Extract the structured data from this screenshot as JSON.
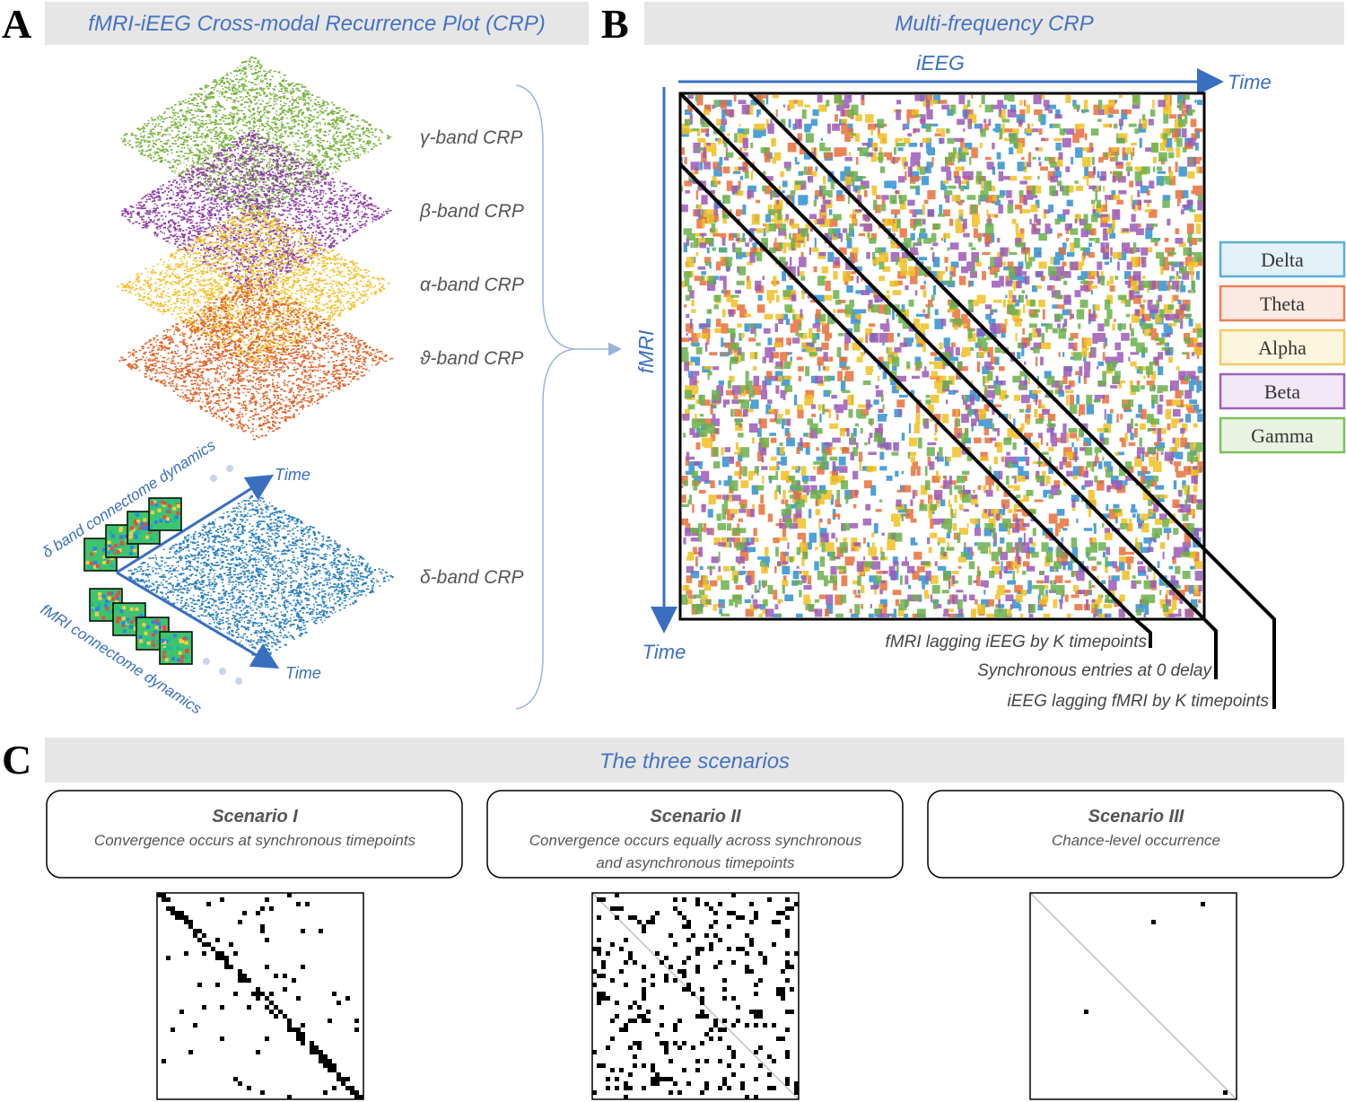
{
  "panels": {
    "A": {
      "letter": "A",
      "title": "fMRI-iEEG Cross-modal Recurrence Plot (CRP)",
      "layers": [
        "γ-band CRP",
        "β-band CRP",
        "α-band CRP",
        "ϑ-band CRP",
        "δ-band CRP"
      ],
      "time_labels": [
        "Time",
        "Time"
      ],
      "dynamics": [
        "δ band connectome dynamics",
        "fMRI connectome dynamics"
      ]
    },
    "B": {
      "letter": "B",
      "title": "Multi-frequency CRP",
      "x_axis": "iEEG",
      "x_time": "Time",
      "y_axis": "fMRI",
      "y_time": "Time",
      "legend": [
        "Delta",
        "Theta",
        "Alpha",
        "Beta",
        "Gamma"
      ],
      "annotations": [
        "fMRI lagging iEEG by K timepoints",
        "Synchronous entries at 0 delay",
        "iEEG lagging fMRI by K timepoints"
      ]
    },
    "C": {
      "letter": "C",
      "title": "The three scenarios",
      "scenarios": [
        {
          "name": "Scenario I",
          "description": [
            "Convergence occurs at synchronous timepoints"
          ]
        },
        {
          "name": "Scenario II",
          "description": [
            "Convergence occurs equally across synchronous",
            "and asynchronous timepoints"
          ]
        },
        {
          "name": "Scenario III",
          "description": [
            "Chance-level occurrence"
          ]
        }
      ]
    }
  }
}
